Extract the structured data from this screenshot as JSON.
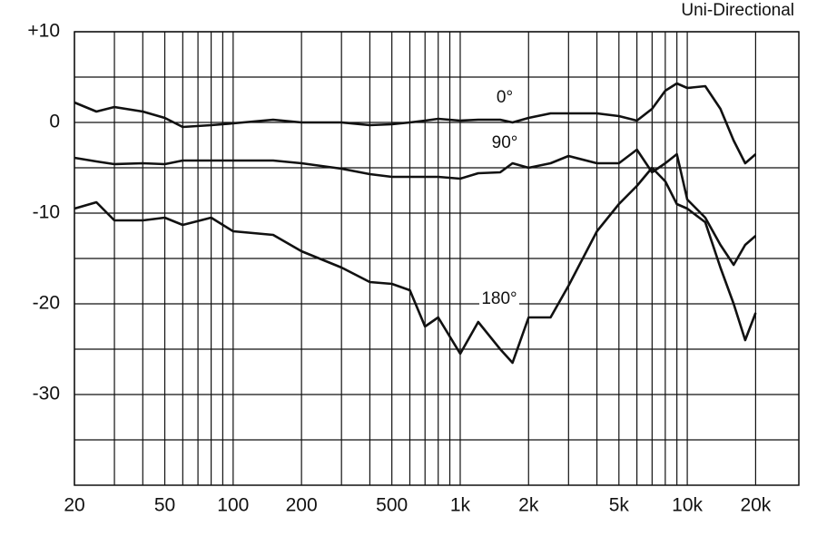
{
  "chart_data": {
    "type": "line",
    "title": "Uni-Directional",
    "x": [
      20,
      25,
      30,
      40,
      50,
      60,
      80,
      100,
      150,
      200,
      300,
      400,
      500,
      600,
      700,
      800,
      1000,
      1200,
      1500,
      1700,
      2000,
      2500,
      3000,
      4000,
      5000,
      6000,
      7000,
      8000,
      9000,
      10000,
      12000,
      14000,
      16000,
      18000,
      20000
    ],
    "series": [
      {
        "name": "0°",
        "color": "#111111",
        "values": [
          2.2,
          1.2,
          1.7,
          1.2,
          0.5,
          -0.5,
          -0.3,
          -0.1,
          0.3,
          0,
          0,
          -0.3,
          -0.2,
          0,
          0.2,
          0.4,
          0.2,
          0.3,
          0.3,
          0,
          0.5,
          1,
          1,
          1,
          0.7,
          0.2,
          1.5,
          3.5,
          4.3,
          3.8,
          4,
          1.5,
          -2,
          -4.5,
          -3.5
        ]
      },
      {
        "name": "90°",
        "color": "#111111",
        "values": [
          -3.9,
          -4.3,
          -4.6,
          -4.5,
          -4.6,
          -4.2,
          -4.2,
          -4.2,
          -4.2,
          -4.5,
          -5.1,
          -5.7,
          -6,
          -6,
          -6,
          -6,
          -6.2,
          -5.6,
          -5.5,
          -4.5,
          -5,
          -4.5,
          -3.7,
          -4.5,
          -4.5,
          -3,
          -5.5,
          -4.5,
          -3.5,
          -8.5,
          -10.5,
          -13.5,
          -15.7,
          -13.5,
          -12.5
        ]
      },
      {
        "name": "180°",
        "color": "#111111",
        "values": [
          -9.5,
          -8.8,
          -10.8,
          -10.8,
          -10.5,
          -11.3,
          -10.5,
          -12,
          -12.4,
          -14.2,
          -16,
          -17.6,
          -17.8,
          -18.5,
          -22.5,
          -21.5,
          -25.5,
          -22,
          -25,
          -26.5,
          -21.5,
          -21.5,
          -18,
          -12,
          -9,
          -7,
          -5,
          -6.5,
          -9,
          -9.5,
          -11,
          -16,
          -20,
          -24,
          -21
        ]
      }
    ],
    "log_x": true,
    "xlim": [
      20,
      31000
    ],
    "xticks": [
      20,
      50,
      100,
      200,
      500,
      {
        "value": 1000,
        "label": "1k"
      },
      {
        "value": 2000,
        "label": "2k"
      },
      {
        "value": 5000,
        "label": "5k"
      },
      {
        "value": 10000,
        "label": "10k"
      },
      {
        "value": 20000,
        "label": "20k"
      }
    ],
    "xminor": [
      30,
      40,
      60,
      70,
      80,
      90,
      300,
      400,
      600,
      700,
      800,
      900,
      3000,
      4000,
      6000,
      7000,
      8000,
      9000
    ],
    "ylim": [
      -40,
      10
    ],
    "yticks": [
      {
        "value": 10,
        "label": "+10"
      },
      0,
      -10,
      -20,
      -30
    ],
    "yminor": [
      5,
      -5,
      -15,
      -25,
      -35
    ],
    "grid": true
  }
}
